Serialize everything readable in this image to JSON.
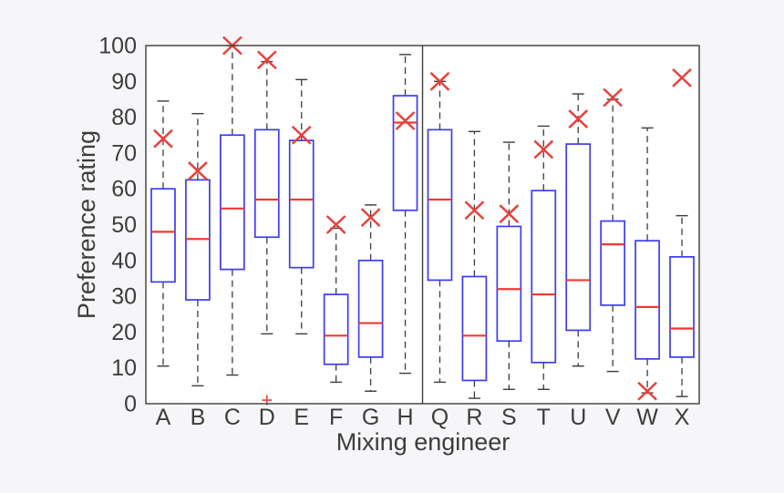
{
  "figure": {
    "background_color": "#f6f6f8",
    "plot_background_color": "#ffffff",
    "axis_color": "#3c3c3c",
    "text_color": "#3d3d3d"
  },
  "chart_data": {
    "type": "boxplot",
    "title": "",
    "xlabel": "Mixing engineer",
    "ylabel": "Preference rating",
    "ylim": [
      0,
      100
    ],
    "yticks": [
      0,
      10,
      20,
      30,
      40,
      50,
      60,
      70,
      80,
      90,
      100
    ],
    "grid": false,
    "legend": false,
    "categories": [
      "A",
      "B",
      "C",
      "D",
      "E",
      "F",
      "G",
      "H",
      "Q",
      "R",
      "S",
      "T",
      "U",
      "V",
      "W",
      "X"
    ],
    "group_separator_after_category": "H",
    "style": {
      "box_color": "#3c3cf0",
      "median_color": "#ef3b33",
      "x_marker_color": "#e8413c",
      "outlier_color": "#e8413c",
      "whisker_color": "#3c3c3c",
      "whisker_style": "dashed"
    },
    "series": [
      {
        "category": "A",
        "whisker_low": 10.5,
        "q1": 34,
        "median": 48,
        "q3": 60,
        "whisker_high": 84.5,
        "x_marker": 74,
        "outliers": []
      },
      {
        "category": "B",
        "whisker_low": 5,
        "q1": 29,
        "median": 46,
        "q3": 62.5,
        "whisker_high": 81,
        "x_marker": 65,
        "outliers": []
      },
      {
        "category": "C",
        "whisker_low": 8,
        "q1": 37.5,
        "median": 54.5,
        "q3": 75,
        "whisker_high": 100,
        "x_marker": 100,
        "outliers": []
      },
      {
        "category": "D",
        "whisker_low": 19.5,
        "q1": 46.5,
        "median": 57,
        "q3": 76.5,
        "whisker_high": 95.5,
        "x_marker": 96,
        "outliers": [
          1
        ]
      },
      {
        "category": "E",
        "whisker_low": 19.5,
        "q1": 38,
        "median": 57,
        "q3": 73.5,
        "whisker_high": 90.5,
        "x_marker": 75,
        "outliers": []
      },
      {
        "category": "F",
        "whisker_low": 6,
        "q1": 11,
        "median": 19,
        "q3": 30.5,
        "whisker_high": 49,
        "x_marker": 50,
        "outliers": []
      },
      {
        "category": "G",
        "whisker_low": 3.5,
        "q1": 13,
        "median": 22.5,
        "q3": 40,
        "whisker_high": 55.5,
        "x_marker": 52,
        "outliers": []
      },
      {
        "category": "H",
        "whisker_low": 8.5,
        "q1": 54,
        "median": 78.5,
        "q3": 86,
        "whisker_high": 97.5,
        "x_marker": 79,
        "outliers": []
      },
      {
        "category": "Q",
        "whisker_low": 6,
        "q1": 34.5,
        "median": 57,
        "q3": 76.5,
        "whisker_high": 90,
        "x_marker": 90,
        "outliers": []
      },
      {
        "category": "R",
        "whisker_low": 1.5,
        "q1": 6.5,
        "median": 19,
        "q3": 35.5,
        "whisker_high": 76,
        "x_marker": 54,
        "outliers": []
      },
      {
        "category": "S",
        "whisker_low": 4,
        "q1": 17.5,
        "median": 32,
        "q3": 49.5,
        "whisker_high": 73,
        "x_marker": 53,
        "outliers": []
      },
      {
        "category": "T",
        "whisker_low": 4,
        "q1": 11.5,
        "median": 30.5,
        "q3": 59.5,
        "whisker_high": 77.5,
        "x_marker": 71,
        "outliers": []
      },
      {
        "category": "U",
        "whisker_low": 10.5,
        "q1": 20.5,
        "median": 34.5,
        "q3": 72.5,
        "whisker_high": 86.5,
        "x_marker": 79.5,
        "outliers": []
      },
      {
        "category": "V",
        "whisker_low": 9,
        "q1": 27.5,
        "median": 44.5,
        "q3": 51,
        "whisker_high": 85,
        "x_marker": 85.5,
        "outliers": []
      },
      {
        "category": "W",
        "whisker_low": 3,
        "q1": 12.5,
        "median": 27,
        "q3": 45.5,
        "whisker_high": 77,
        "x_marker": 3.5,
        "outliers": []
      },
      {
        "category": "X",
        "whisker_low": 2,
        "q1": 13,
        "median": 21,
        "q3": 41,
        "whisker_high": 52.5,
        "x_marker": 91,
        "outliers": []
      }
    ]
  }
}
